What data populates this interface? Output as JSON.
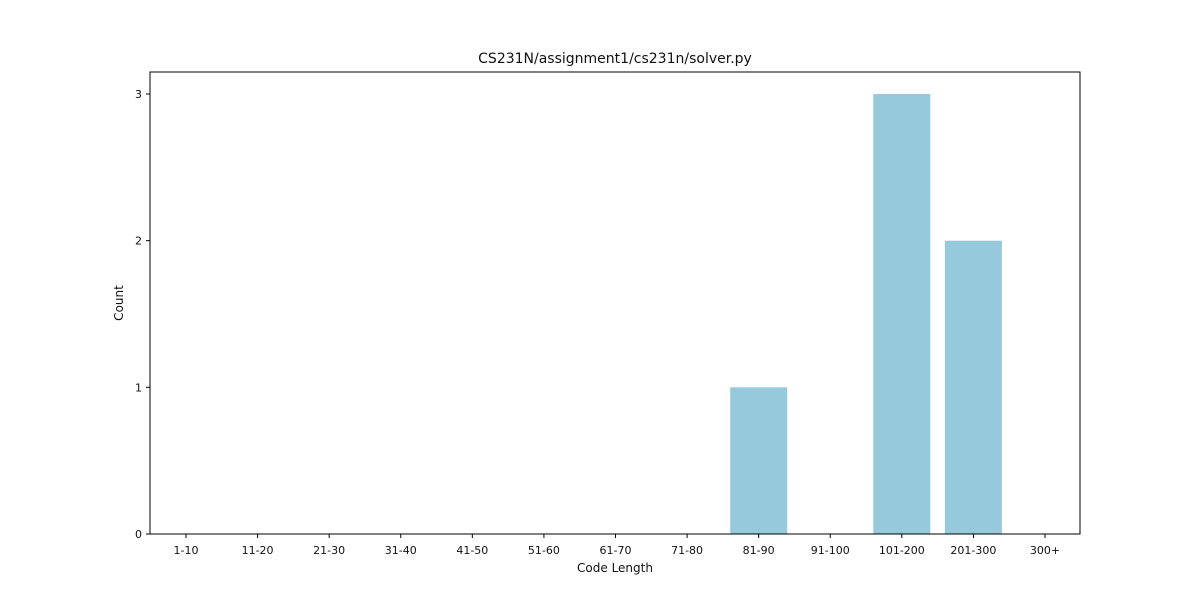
{
  "chart_data": {
    "type": "bar",
    "title": "CS231N/assignment1/cs231n/solver.py",
    "xlabel": "Code Length",
    "ylabel": "Count",
    "categories": [
      "1-10",
      "11-20",
      "21-30",
      "31-40",
      "41-50",
      "51-60",
      "61-70",
      "71-80",
      "81-90",
      "91-100",
      "101-200",
      "201-300",
      "300+"
    ],
    "values": [
      0,
      0,
      0,
      0,
      0,
      0,
      0,
      0,
      1,
      0,
      3,
      2,
      0
    ],
    "ylim": [
      0,
      3.15
    ],
    "yticks": [
      0,
      1,
      2,
      3
    ],
    "grid": false,
    "colors": {
      "bar": "#96c9dc",
      "axis": "#000000"
    }
  }
}
